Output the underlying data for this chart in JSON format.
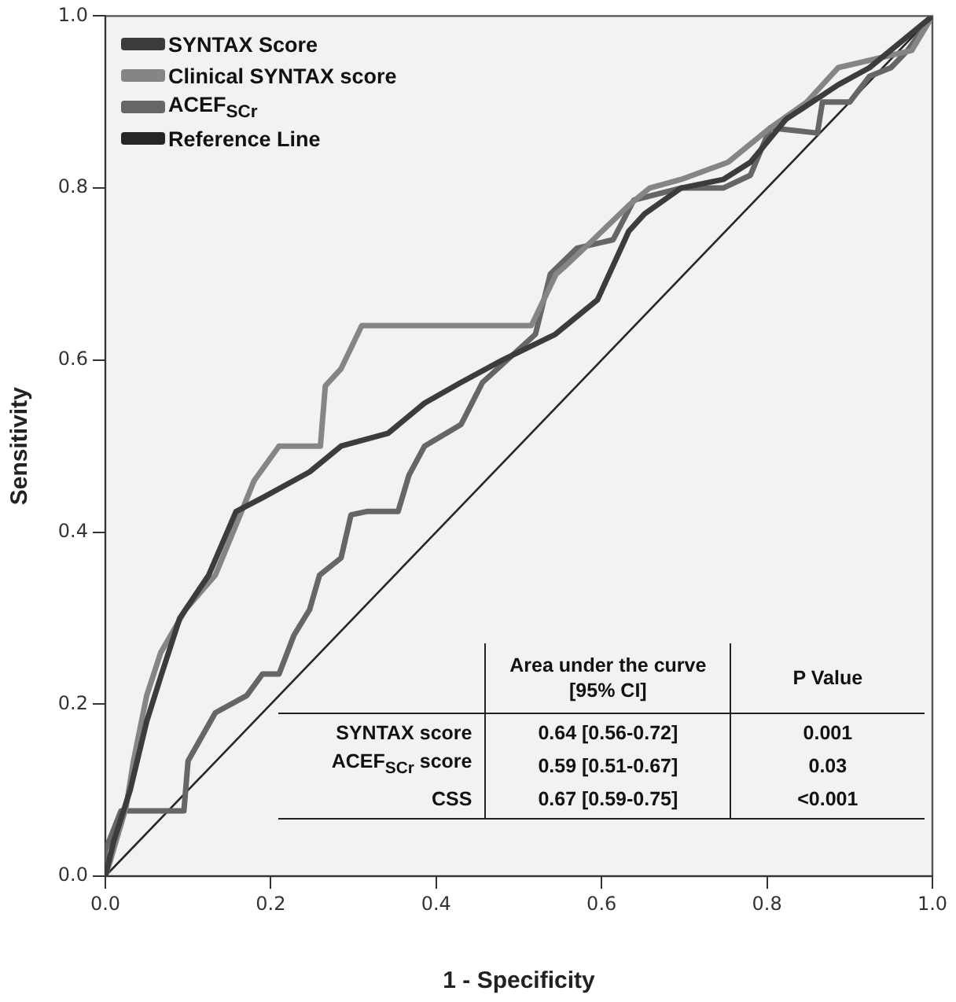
{
  "chart_data": {
    "type": "line",
    "xlabel": "1 - Specificity",
    "ylabel": "Sensitivity",
    "xlim": [
      0,
      1
    ],
    "ylim": [
      0,
      1
    ],
    "xticks": [
      {
        "value": 0,
        "label": "0.0"
      },
      {
        "value": 0.2,
        "label": "0.2"
      },
      {
        "value": 0.4,
        "label": "0.4"
      },
      {
        "value": 0.6,
        "label": "0.6"
      },
      {
        "value": 0.8,
        "label": "0.8"
      },
      {
        "value": 1,
        "label": "1.0"
      }
    ],
    "yticks": [
      {
        "value": 0,
        "label": "0.0"
      },
      {
        "value": 0.2,
        "label": "0.2"
      },
      {
        "value": 0.4,
        "label": "0.4"
      },
      {
        "value": 0.6,
        "label": "0.6"
      },
      {
        "value": 0.8,
        "label": "0.8"
      },
      {
        "value": 1,
        "label": "1.0"
      }
    ],
    "grid": false,
    "legend": "top left",
    "marker": "none",
    "series": [
      {
        "name": "SYNTAX Score",
        "color": "#3c3c3c",
        "x": [
          0,
          0.01,
          0.03,
          0.05,
          0.068,
          0.09,
          0.125,
          0.158,
          0.19,
          0.247,
          0.285,
          0.342,
          0.386,
          0.43,
          0.48,
          0.544,
          0.595,
          0.633,
          0.652,
          0.696,
          0.747,
          0.78,
          0.823,
          0.886,
          0.924,
          1
        ],
        "values": [
          0,
          0.04,
          0.1,
          0.18,
          0.235,
          0.3,
          0.35,
          0.424,
          0.44,
          0.47,
          0.5,
          0.515,
          0.55,
          0.574,
          0.6,
          0.63,
          0.67,
          0.75,
          0.77,
          0.8,
          0.81,
          0.83,
          0.88,
          0.92,
          0.94,
          1
        ]
      },
      {
        "name": "Clinical SYNTAX score",
        "color": "#858585",
        "x": [
          0,
          0.006,
          0.025,
          0.034,
          0.05,
          0.067,
          0.097,
          0.133,
          0.163,
          0.18,
          0.21,
          0.26,
          0.266,
          0.285,
          0.3,
          0.31,
          0.515,
          0.52,
          0.545,
          0.557,
          0.59,
          0.633,
          0.658,
          0.696,
          0.753,
          0.804,
          0.848,
          0.886,
          0.975,
          1
        ],
        "values": [
          0,
          0.018,
          0.08,
          0.134,
          0.21,
          0.26,
          0.31,
          0.35,
          0.42,
          0.46,
          0.5,
          0.5,
          0.57,
          0.59,
          0.62,
          0.64,
          0.64,
          0.65,
          0.7,
          0.71,
          0.74,
          0.78,
          0.8,
          0.81,
          0.83,
          0.87,
          0.9,
          0.94,
          0.96,
          1
        ]
      },
      {
        "name": "ACEF$_{SCr}$",
        "color": "#666666",
        "x": [
          0,
          0,
          0.019,
          0.095,
          0.1,
          0.133,
          0.171,
          0.19,
          0.21,
          0.228,
          0.247,
          0.259,
          0.285,
          0.297,
          0.316,
          0.354,
          0.367,
          0.386,
          0.43,
          0.456,
          0.52,
          0.538,
          0.57,
          0.614,
          0.639,
          0.696,
          0.747,
          0.78,
          0.804,
          0.861,
          0.867,
          0.9,
          0.924,
          0.95,
          0.97,
          1
        ],
        "values": [
          0,
          0.03,
          0.076,
          0.076,
          0.134,
          0.19,
          0.21,
          0.235,
          0.235,
          0.28,
          0.31,
          0.35,
          0.37,
          0.42,
          0.424,
          0.424,
          0.466,
          0.5,
          0.525,
          0.574,
          0.63,
          0.7,
          0.73,
          0.74,
          0.786,
          0.8,
          0.8,
          0.815,
          0.87,
          0.864,
          0.9,
          0.9,
          0.93,
          0.94,
          0.96,
          1
        ]
      },
      {
        "name": "Reference Line",
        "color": "#262626",
        "x": [
          0,
          1
        ],
        "values": [
          0,
          1
        ]
      }
    ],
    "annotations": [
      "Area under the curve [95% CI]",
      "P Value",
      "SYNTAX score",
      "0.64 [0.56-0.72]",
      "0.001",
      "ACEF$_{SCr}$ score",
      "0.59 [0.51-0.67]",
      "0.03",
      "CSS",
      "0.67 [0.59-0.75]",
      "<0.001"
    ]
  }
}
